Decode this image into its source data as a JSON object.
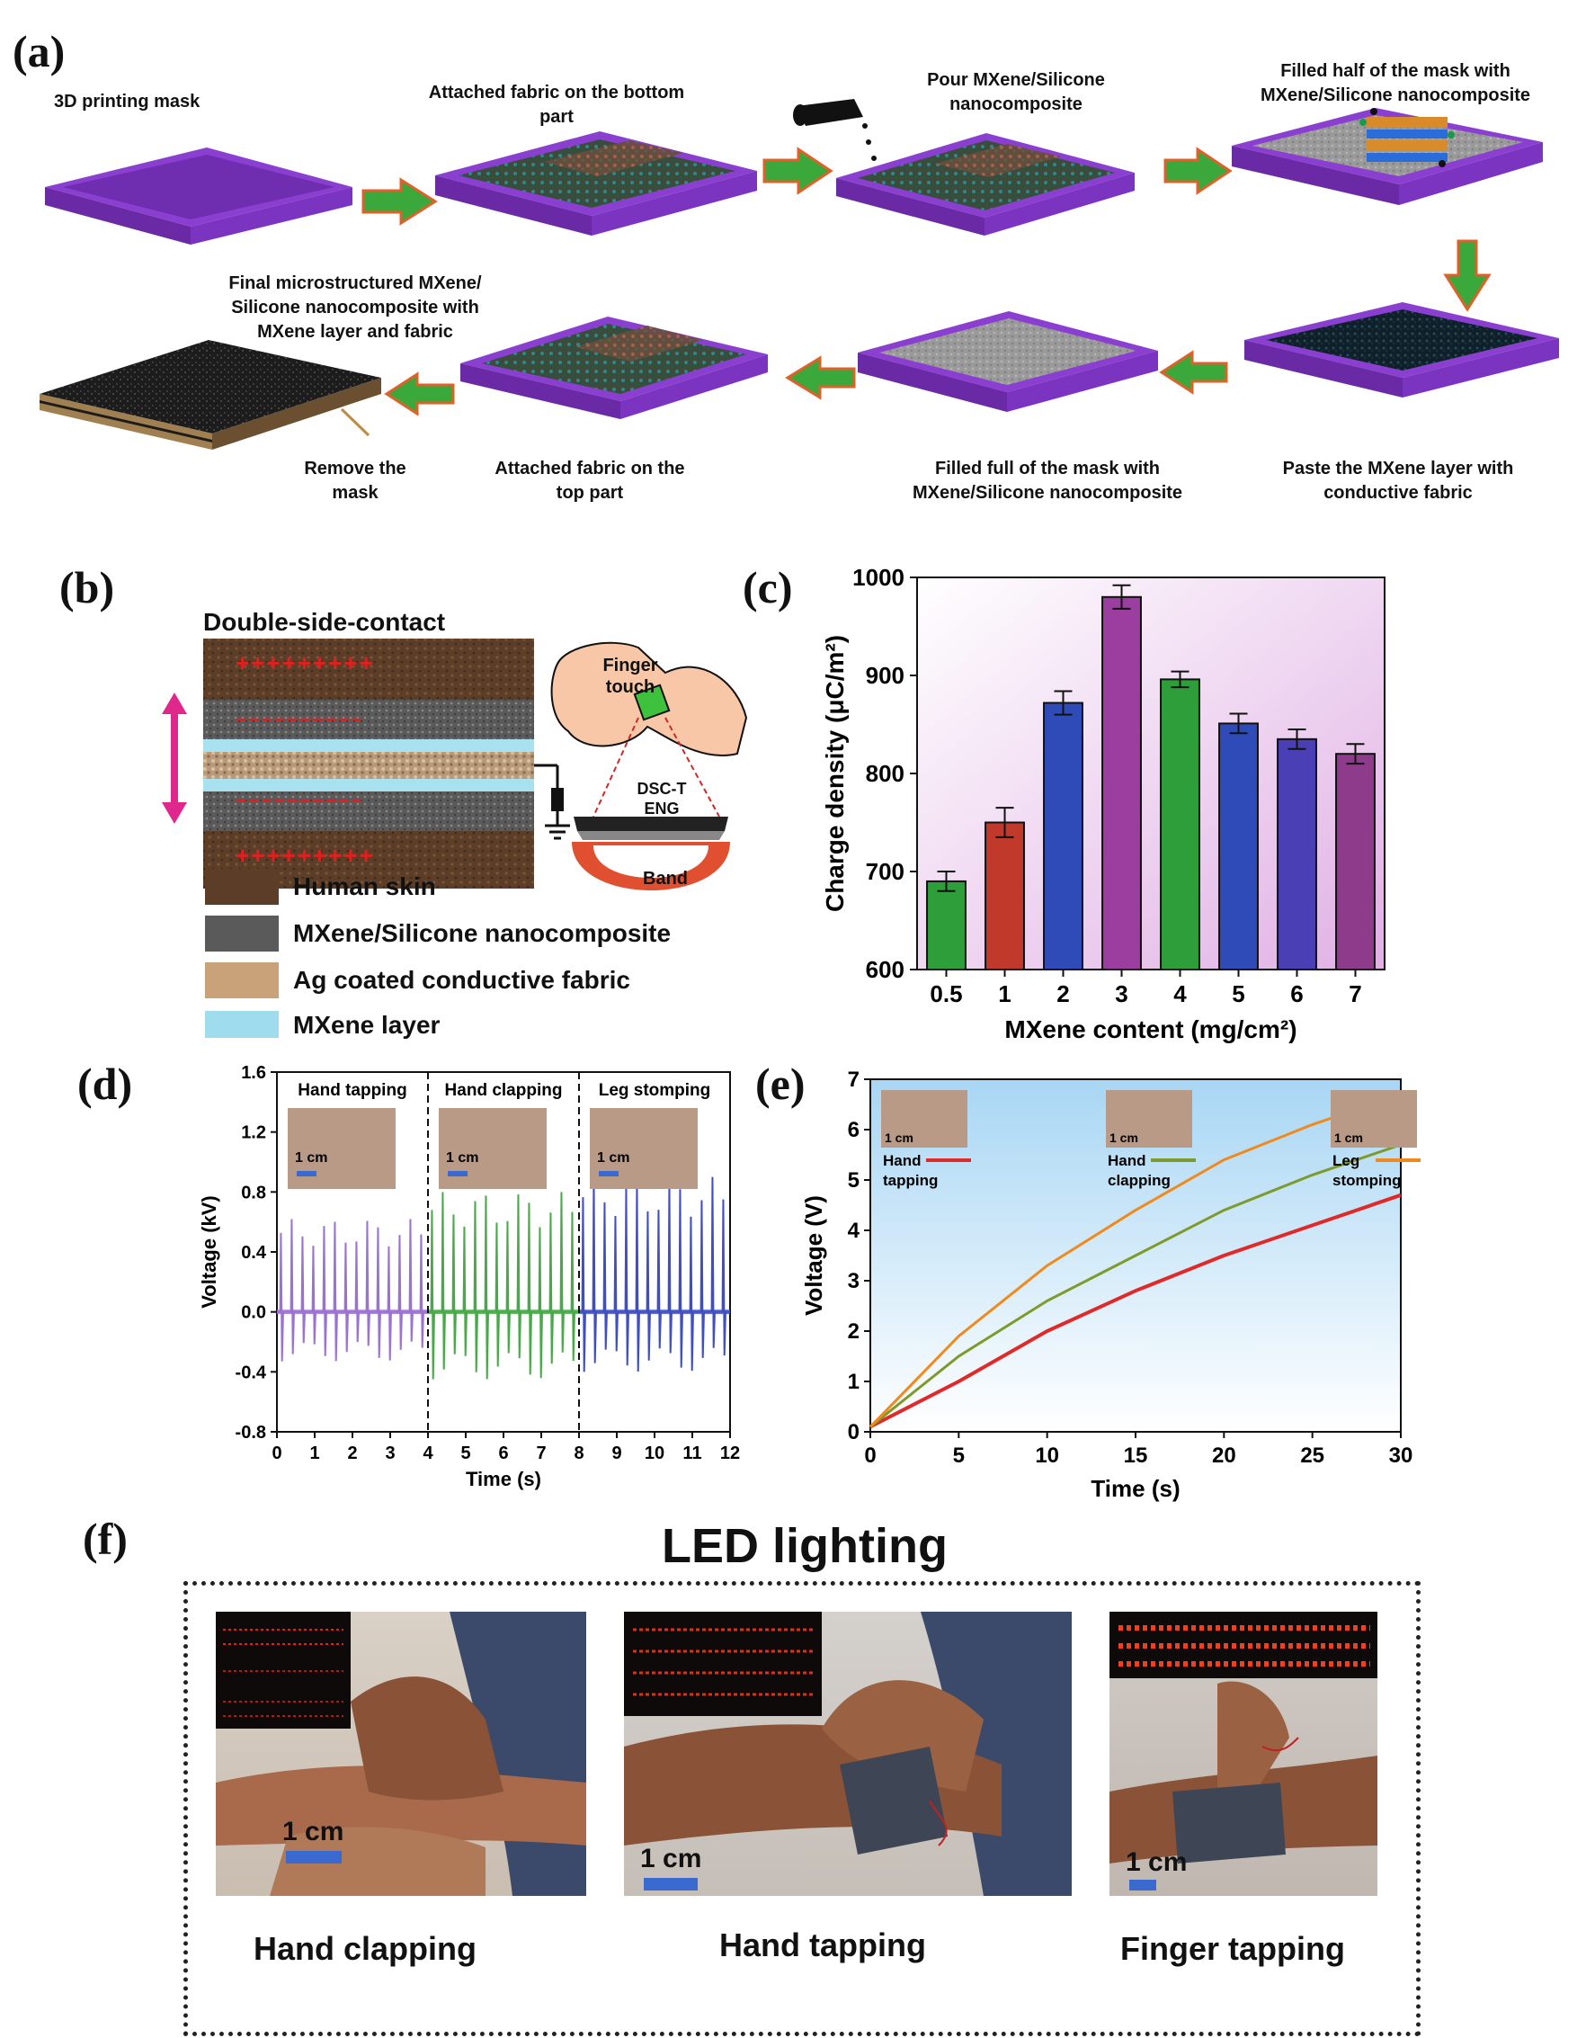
{
  "panel_labels": {
    "a": "(a)",
    "b": "(b)",
    "c": "(c)",
    "d": "(d)",
    "e": "(e)",
    "f": "(f)"
  },
  "panel_a": {
    "steps": [
      {
        "id": "s1",
        "caption": "3D printing mask"
      },
      {
        "id": "s2",
        "caption": "Attached fabric on the bottom part"
      },
      {
        "id": "s3",
        "caption": "Pour MXene/Silicone nanocomposite"
      },
      {
        "id": "s4",
        "caption": "Filled half of the mask with MXene/Silicone nanocomposite"
      },
      {
        "id": "s5",
        "caption": "Paste the MXene layer with conductive fabric"
      },
      {
        "id": "s6",
        "caption": "Filled full of the mask with MXene/Silicone nanocomposite"
      },
      {
        "id": "s7",
        "caption": "Attached fabric on the top part"
      },
      {
        "id": "s8",
        "caption": "Remove the mask"
      },
      {
        "id": "s9",
        "caption": "Final microstructured MXene/ Silicone nanocomposite with MXene layer and fabric"
      }
    ]
  },
  "panel_b": {
    "title": "Double-side-contact",
    "plus_top": "+++++++++",
    "minus": "––––––––––",
    "plus_bottom": "+++++++++",
    "finger_label": "Finger touch",
    "device_label": "DSC-TENG",
    "band_label": "Band",
    "legend": [
      {
        "name": "Human skin",
        "color": "#6b4a2e"
      },
      {
        "name": "MXene/Silicone nanocomposite",
        "color": "#666666"
      },
      {
        "name": "Ag coated conductive fabric",
        "color": "#c9a27a"
      },
      {
        "name": "MXene layer",
        "color": "#9fdcee"
      }
    ]
  },
  "panel_c": {
    "chart_data": {
      "type": "bar",
      "categories": [
        "0.5",
        "1",
        "2",
        "3",
        "4",
        "5",
        "6",
        "7"
      ],
      "values": [
        690,
        750,
        872,
        980,
        896,
        851,
        835,
        820
      ],
      "errors": [
        10,
        15,
        12,
        12,
        8,
        10,
        10,
        10
      ],
      "bar_colors": [
        "#2e9e3a",
        "#c0392b",
        "#2f4bb8",
        "#9b3ea0",
        "#2e9e3a",
        "#2f4bb8",
        "#4b3fb5",
        "#8e3b8c"
      ],
      "xlabel": "MXene content (mg/cm²)",
      "ylabel": "Charge density (μC/m²)",
      "ylim": [
        600,
        1000
      ],
      "yticks": [
        600,
        700,
        800,
        900,
        1000
      ]
    }
  },
  "panel_d": {
    "chart_data": {
      "type": "line",
      "xlabel": "Time (s)",
      "ylabel": "Voltage (kV)",
      "xlim": [
        0,
        12
      ],
      "ylim": [
        -0.8,
        1.6
      ],
      "xticks": [
        0,
        1,
        2,
        3,
        4,
        5,
        6,
        7,
        8,
        9,
        10,
        11,
        12
      ],
      "yticks": [
        -0.8,
        -0.4,
        0.0,
        0.4,
        0.8,
        1.2,
        1.6
      ],
      "series": [
        {
          "name": "Hand tapping",
          "color": "#9b72cf",
          "x_range": [
            0,
            4
          ],
          "peaks_pos": 0.62,
          "peaks_neg": -0.33
        },
        {
          "name": "Hand clapping",
          "color": "#49a84a",
          "x_range": [
            4,
            8
          ],
          "peaks_pos": 0.8,
          "peaks_neg": -0.45
        },
        {
          "name": "Leg stomping",
          "color": "#3f4fc0",
          "x_range": [
            8,
            12
          ],
          "peaks_pos": 0.9,
          "peaks_neg": -0.4
        }
      ],
      "scale_label": "1 cm"
    }
  },
  "panel_e": {
    "chart_data": {
      "type": "line",
      "xlabel": "Time (s)",
      "ylabel": "Voltage (V)",
      "xlim": [
        0,
        30
      ],
      "ylim": [
        0,
        7
      ],
      "xticks": [
        0,
        5,
        10,
        15,
        20,
        25,
        30
      ],
      "yticks": [
        0,
        1,
        2,
        3,
        4,
        5,
        6,
        7
      ],
      "series": [
        {
          "name": "Hand tapping",
          "color": "#e02a2a",
          "x": [
            0,
            5,
            10,
            15,
            20,
            25,
            30
          ],
          "y": [
            0.1,
            1.0,
            2.0,
            2.8,
            3.5,
            4.1,
            4.7
          ]
        },
        {
          "name": "Hand clapping",
          "color": "#7d9a2a",
          "x": [
            0,
            5,
            10,
            15,
            20,
            25,
            30
          ],
          "y": [
            0.1,
            1.5,
            2.6,
            3.5,
            4.4,
            5.1,
            5.7
          ]
        },
        {
          "name": "Leg stomping",
          "color": "#f08a1c",
          "x": [
            0,
            5,
            10,
            15,
            20,
            25,
            30
          ],
          "y": [
            0.1,
            1.9,
            3.3,
            4.4,
            5.4,
            6.1,
            6.7
          ]
        }
      ],
      "scale_label": "1 cm"
    }
  },
  "panel_f": {
    "title": "LED lighting",
    "photos": [
      {
        "caption": "Hand clapping",
        "scale": "1 cm"
      },
      {
        "caption": "Hand tapping",
        "scale": "1 cm"
      },
      {
        "caption": "Finger tapping",
        "scale": "1 cm"
      }
    ]
  }
}
